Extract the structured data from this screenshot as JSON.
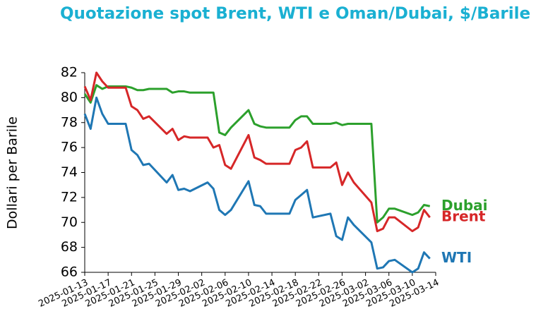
{
  "chart_data": {
    "type": "line",
    "title": "Quotazione spot Brent, WTI e Oman/Dubai, $/Barile",
    "ylabel": "Dollari per Barile",
    "x": [
      "2025-01-13",
      "2025-01-14",
      "2025-01-15",
      "2025-01-16",
      "2025-01-17",
      "2025-01-20",
      "2025-01-21",
      "2025-01-22",
      "2025-01-23",
      "2025-01-24",
      "2025-01-27",
      "2025-01-28",
      "2025-01-29",
      "2025-01-30",
      "2025-01-31",
      "2025-02-03",
      "2025-02-04",
      "2025-02-05",
      "2025-02-06",
      "2025-02-07",
      "2025-02-10",
      "2025-02-11",
      "2025-02-12",
      "2025-02-13",
      "2025-02-14",
      "2025-02-17",
      "2025-02-18",
      "2025-02-19",
      "2025-02-20",
      "2025-02-21",
      "2025-02-24",
      "2025-02-25",
      "2025-02-26",
      "2025-02-27",
      "2025-02-28",
      "2025-03-03",
      "2025-03-04",
      "2025-03-05",
      "2025-03-06",
      "2025-03-07",
      "2025-03-10",
      "2025-03-11",
      "2025-03-12",
      "2025-03-13"
    ],
    "series": [
      {
        "name": "Dubai",
        "color": "#2ca02c",
        "values": [
          80.3,
          79.6,
          81.0,
          80.7,
          80.9,
          80.9,
          80.8,
          80.6,
          80.6,
          80.7,
          80.7,
          80.4,
          80.5,
          80.5,
          80.4,
          80.4,
          80.4,
          77.2,
          77.0,
          77.6,
          79.0,
          77.9,
          77.7,
          77.6,
          77.6,
          77.6,
          78.2,
          78.5,
          78.5,
          77.9,
          77.9,
          78.0,
          77.8,
          77.9,
          77.9,
          77.9,
          70.0,
          70.4,
          71.1,
          71.1,
          70.6,
          70.8,
          71.4,
          71.3
        ]
      },
      {
        "name": "Brent",
        "color": "#d62728",
        "values": [
          80.9,
          79.8,
          82.0,
          81.3,
          80.8,
          80.8,
          79.3,
          79.0,
          78.3,
          78.5,
          77.1,
          77.5,
          76.6,
          76.9,
          76.8,
          76.8,
          76.0,
          76.2,
          74.6,
          74.3,
          77.0,
          75.2,
          75.0,
          74.7,
          74.7,
          74.7,
          75.8,
          76.0,
          76.5,
          74.4,
          74.4,
          74.8,
          73.0,
          74.0,
          73.2,
          71.6,
          69.3,
          69.5,
          70.4,
          70.4,
          69.3,
          69.6,
          71.0,
          70.4
        ]
      },
      {
        "name": "WTI",
        "color": "#1f77b4",
        "values": [
          78.7,
          77.5,
          80.0,
          78.7,
          77.9,
          77.9,
          75.8,
          75.4,
          74.6,
          74.7,
          73.2,
          73.8,
          72.6,
          72.7,
          72.5,
          73.2,
          72.7,
          71.0,
          70.6,
          71.0,
          73.3,
          71.4,
          71.3,
          70.7,
          70.7,
          70.7,
          71.8,
          72.2,
          72.6,
          70.4,
          70.7,
          68.9,
          68.6,
          70.4,
          69.8,
          68.4,
          66.3,
          66.4,
          66.9,
          67.0,
          66.0,
          66.3,
          67.6,
          67.1
        ]
      }
    ],
    "xlim": [
      "2025-01-13",
      "2025-03-14"
    ],
    "xticks": [
      "2025-01-13",
      "2025-01-17",
      "2025-01-21",
      "2025-01-25",
      "2025-01-29",
      "2025-02-02",
      "2025-02-06",
      "2025-02-10",
      "2025-02-14",
      "2025-02-18",
      "2025-02-22",
      "2025-02-26",
      "2025-03-02",
      "2025-03-06",
      "2025-03-10",
      "2025-03-14"
    ],
    "ylim": [
      66,
      82
    ],
    "yticks": [
      66,
      68,
      70,
      72,
      74,
      76,
      78,
      80,
      82
    ],
    "legend": "end"
  }
}
